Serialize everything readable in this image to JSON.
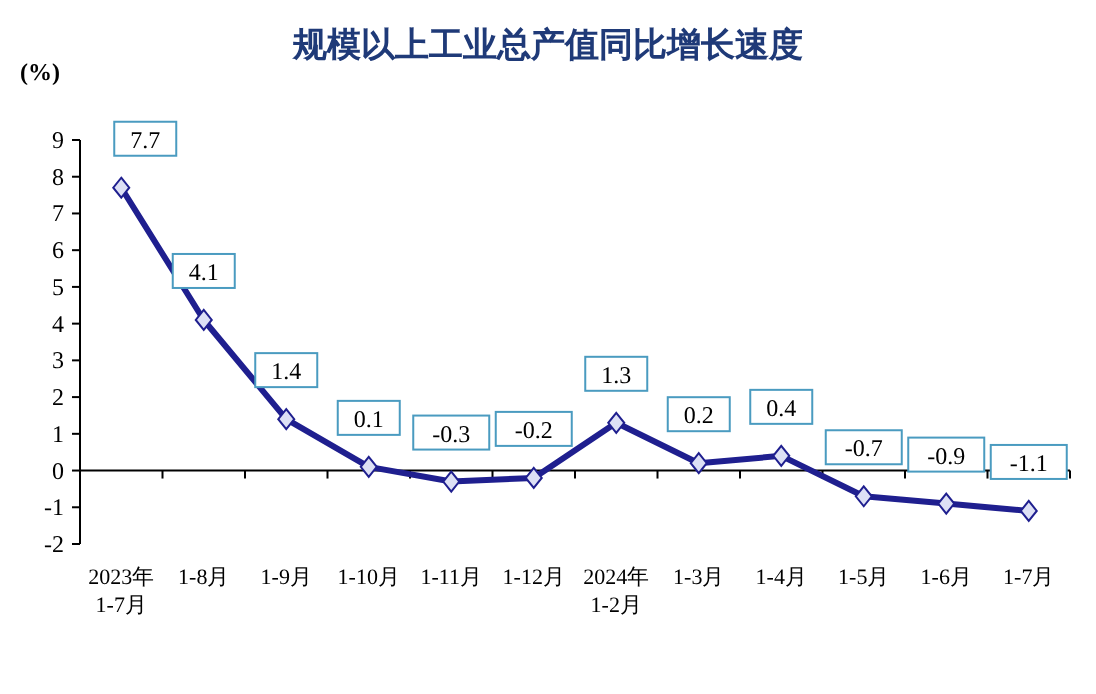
{
  "chart_data": {
    "type": "line",
    "title": "规模以上工业总产值同比增长速度",
    "ylabel": "(%)",
    "categories": [
      "2023年\n1-7月",
      "1-8月",
      "1-9月",
      "1-10月",
      "1-11月",
      "1-12月",
      "2024年\n1-2月",
      "1-3月",
      "1-4月",
      "1-5月",
      "1-6月",
      "1-7月"
    ],
    "series": [
      {
        "color": "#1f1f8f",
        "values": [
          7.7,
          4.1,
          1.4,
          0.1,
          -0.3,
          -0.2,
          1.3,
          0.2,
          0.4,
          -0.7,
          -0.9,
          -1.1
        ]
      }
    ],
    "ylim": [
      -2,
      9
    ],
    "yticks": [
      -2,
      -1,
      0,
      1,
      2,
      3,
      4,
      5,
      6,
      7,
      8,
      9
    ],
    "data_labels": true,
    "marker": "diamond"
  }
}
